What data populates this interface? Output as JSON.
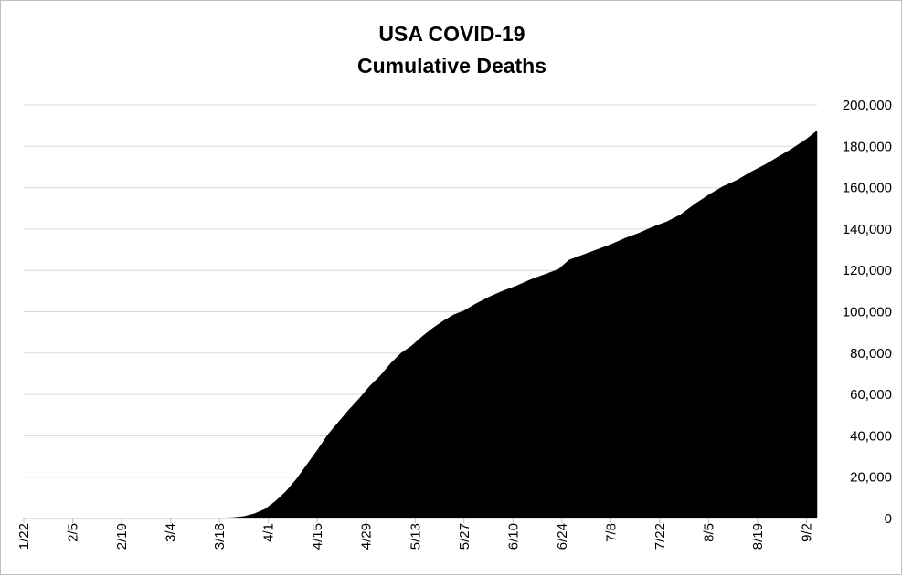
{
  "chart_data": {
    "type": "area",
    "title": [
      "USA COVID-19",
      "Cumulative Deaths"
    ],
    "xlabel": "",
    "ylabel": "",
    "x_tick_labels": [
      "1/22",
      "2/5",
      "2/19",
      "3/4",
      "3/18",
      "4/1",
      "4/15",
      "4/29",
      "5/13",
      "5/27",
      "6/10",
      "6/24",
      "7/8",
      "7/22",
      "8/5",
      "8/19",
      "9/2"
    ],
    "x_range": [
      "1/22",
      "9/5"
    ],
    "y_tick_labels": [
      "0",
      "20,000",
      "40,000",
      "60,000",
      "80,000",
      "100,000",
      "120,000",
      "140,000",
      "160,000",
      "180,000",
      "200,000"
    ],
    "ylim": [
      0,
      200000
    ],
    "y_axis_side": "right",
    "grid": "horizontal",
    "legend": "none",
    "fill_color": "#000000",
    "series": [
      {
        "x": [
          "1/22",
          "2/29",
          "3/10",
          "3/19",
          "3/22",
          "3/25",
          "3/28",
          "3/31",
          "4/3",
          "4/6",
          "4/9",
          "4/12",
          "4/15",
          "4/18",
          "4/21",
          "4/24",
          "4/27",
          "4/30",
          "5/3",
          "5/6",
          "5/9",
          "5/12",
          "5/15",
          "5/18",
          "5/21",
          "5/24",
          "5/27",
          "5/30",
          "6/3",
          "6/7",
          "6/11",
          "6/15",
          "6/19",
          "6/23",
          "6/26",
          "6/30",
          "7/4",
          "7/8",
          "7/12",
          "7/16",
          "7/20",
          "7/24",
          "7/28",
          "8/1",
          "8/5",
          "8/9",
          "8/13",
          "8/17",
          "8/21",
          "8/25",
          "8/29",
          "9/2",
          "9/5"
        ],
        "values": [
          0,
          0,
          30,
          250,
          450,
          1000,
          2300,
          4500,
          8300,
          13000,
          19000,
          26000,
          33000,
          40500,
          46500,
          52500,
          58000,
          64000,
          69000,
          75000,
          80000,
          83500,
          88000,
          92000,
          95500,
          98500,
          100500,
          103500,
          107000,
          110000,
          112500,
          115500,
          118000,
          120500,
          125000,
          127500,
          130000,
          132500,
          135500,
          138000,
          141000,
          143500,
          147000,
          152000,
          156500,
          160500,
          163500,
          167500,
          171000,
          175000,
          179000,
          183500,
          187500
        ]
      }
    ]
  }
}
